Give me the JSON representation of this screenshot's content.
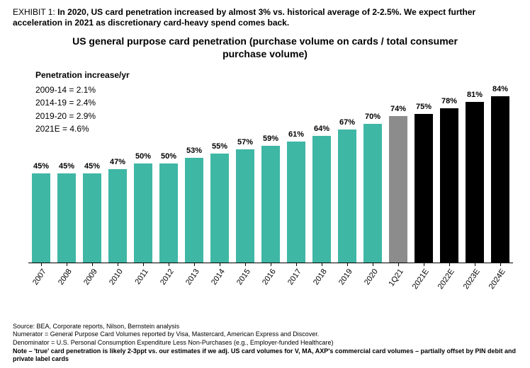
{
  "exhibit": {
    "label": "EXHIBIT 1:",
    "title": "In 2020, US card penetration increased by almost 3% vs. historical average of 2-2.5%. We expect further acceleration in 2021 as discretionary card-heavy spend comes back."
  },
  "chart": {
    "type": "bar",
    "title": "US general purpose card penetration (purchase volume on cards / total consumer purchase volume)",
    "y_max_pct": 100,
    "colors": {
      "history": "#3fb7a5",
      "current": "#8c8c8c",
      "forecast": "#000000",
      "axis": "#000000",
      "background": "#ffffff",
      "text": "#000000"
    },
    "bar_width_ratio": 0.7,
    "label_fontsize_pt": 11,
    "category_fontsize_pt": 11,
    "category_rotation_deg": -55,
    "series": [
      {
        "category": "2007",
        "value": 45,
        "label": "45%",
        "group": "history"
      },
      {
        "category": "2008",
        "value": 45,
        "label": "45%",
        "group": "history"
      },
      {
        "category": "2009",
        "value": 45,
        "label": "45%",
        "group": "history"
      },
      {
        "category": "2010",
        "value": 47,
        "label": "47%",
        "group": "history"
      },
      {
        "category": "2011",
        "value": 50,
        "label": "50%",
        "group": "history"
      },
      {
        "category": "2012",
        "value": 50,
        "label": "50%",
        "group": "history"
      },
      {
        "category": "2013",
        "value": 53,
        "label": "53%",
        "group": "history"
      },
      {
        "category": "2014",
        "value": 55,
        "label": "55%",
        "group": "history"
      },
      {
        "category": "2015",
        "value": 57,
        "label": "57%",
        "group": "history"
      },
      {
        "category": "2016",
        "value": 59,
        "label": "59%",
        "group": "history"
      },
      {
        "category": "2017",
        "value": 61,
        "label": "61%",
        "group": "history"
      },
      {
        "category": "2018",
        "value": 64,
        "label": "64%",
        "group": "history"
      },
      {
        "category": "2019",
        "value": 67,
        "label": "67%",
        "group": "history"
      },
      {
        "category": "2020",
        "value": 70,
        "label": "70%",
        "group": "history"
      },
      {
        "category": "1Q21",
        "value": 74,
        "label": "74%",
        "group": "current"
      },
      {
        "category": "2021E",
        "value": 75,
        "label": "75%",
        "group": "forecast"
      },
      {
        "category": "2022E",
        "value": 78,
        "label": "78%",
        "group": "forecast"
      },
      {
        "category": "2023E",
        "value": 81,
        "label": "81%",
        "group": "forecast"
      },
      {
        "category": "2024E",
        "value": 84,
        "label": "84%",
        "group": "forecast"
      }
    ],
    "overlay": {
      "title": "Penetration increase/yr",
      "rows": [
        "2009-14  = 2.1%",
        "2014-19  = 2.4%",
        "2019-20  = 2.9%",
        "2021E = 4.6%"
      ]
    }
  },
  "footer": {
    "lines": [
      "Source: BEA, Corporate reports, Nilson, Bernstein analysis",
      "Numerator = General Purpose Card Volumes reported by Visa, Mastercard, American Express and Discover.",
      "Denominator = U.S. Personal Consumption Expenditure Less Non-Purchases (e.g., Employer-funded Healthcare)"
    ],
    "note": "Note – 'true' card penetration is likely 2-3ppt vs. our estimates if we adj. US card volumes for V, MA, AXP's commercial card volumes – partially offset by PIN debit and private label cards"
  }
}
